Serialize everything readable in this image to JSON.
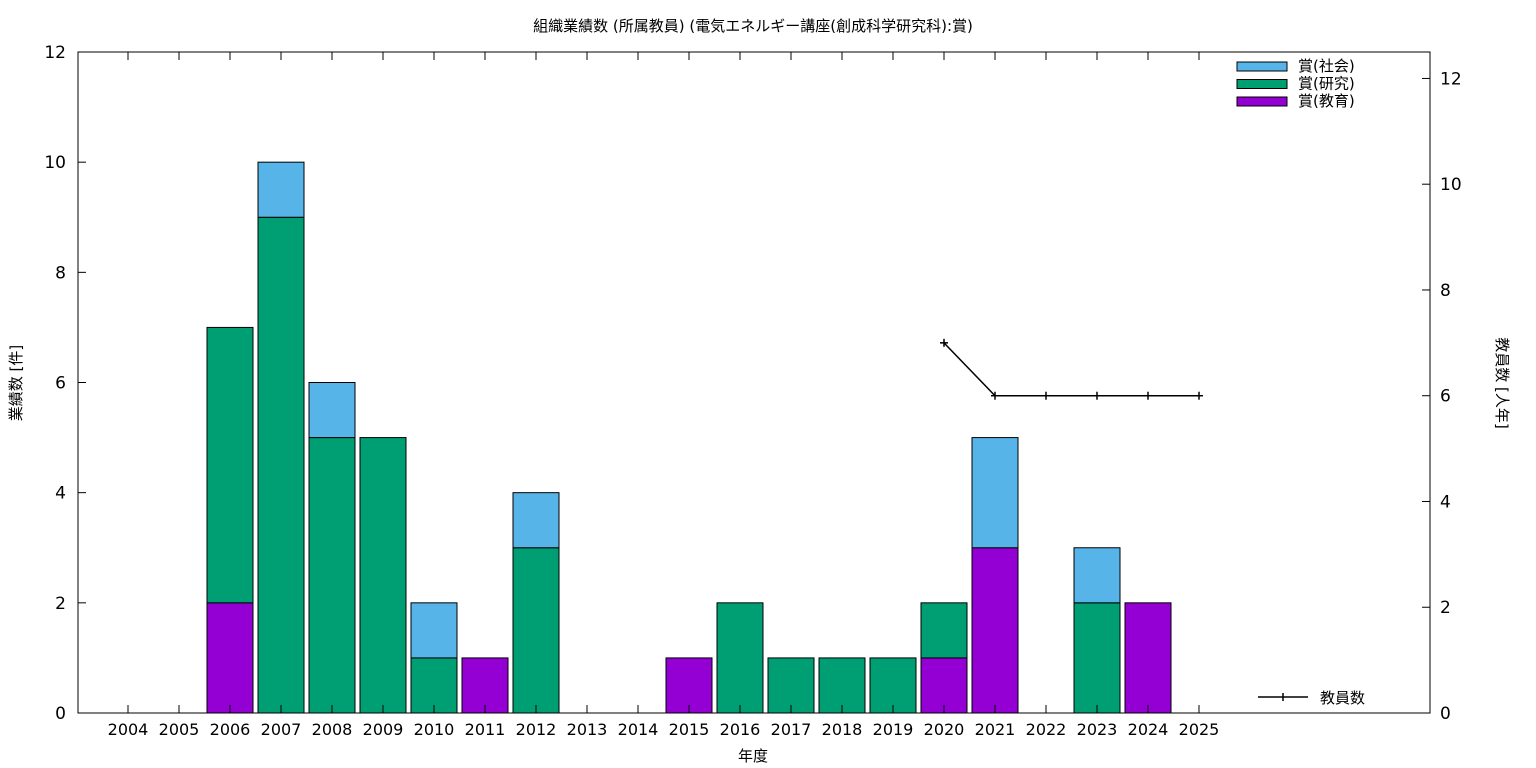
{
  "chart_data": {
    "type": "bar",
    "title": "組織業績数 (所属教員) (電気エネルギー講座(創成科学研究科):賞)",
    "xlabel": "年度",
    "ylabel": "業績数 [件]",
    "y2label": "教員数 [人年]",
    "ylim": [
      0,
      12
    ],
    "y2lim": [
      0,
      12.5
    ],
    "yticks": [
      0,
      2,
      4,
      6,
      8,
      10,
      12
    ],
    "y2ticks": [
      0,
      2,
      4,
      6,
      8,
      10,
      12
    ],
    "stacked": true,
    "grid": false,
    "legend_position": "top-right",
    "categories": [
      "2004",
      "2005",
      "2006",
      "2007",
      "2008",
      "2009",
      "2010",
      "2011",
      "2012",
      "2013",
      "2014",
      "2015",
      "2016",
      "2017",
      "2018",
      "2019",
      "2020",
      "2021",
      "2022",
      "2023",
      "2024",
      "2025"
    ],
    "series": [
      {
        "name": "賞(教育)",
        "color": "#9400d3",
        "values": [
          0,
          0,
          2,
          0,
          0,
          0,
          0,
          1,
          0,
          0,
          0,
          1,
          0,
          0,
          0,
          0,
          1,
          3,
          0,
          0,
          2,
          0
        ]
      },
      {
        "name": "賞(研究)",
        "color": "#009e73",
        "values": [
          0,
          0,
          5,
          9,
          5,
          5,
          1,
          0,
          3,
          0,
          0,
          0,
          2,
          1,
          1,
          1,
          1,
          0,
          0,
          2,
          0,
          0
        ]
      },
      {
        "name": "賞(社会)",
        "color": "#56b4e9",
        "values": [
          0,
          0,
          0,
          1,
          1,
          0,
          1,
          0,
          1,
          0,
          0,
          0,
          0,
          0,
          0,
          0,
          0,
          2,
          0,
          1,
          0,
          0
        ]
      }
    ],
    "line_series": {
      "name": "教員数",
      "axis": "y2",
      "color": "#000000",
      "x": [
        "2020",
        "2021",
        "2022",
        "2023",
        "2024",
        "2025"
      ],
      "values": [
        7,
        6,
        6,
        6,
        6,
        6
      ]
    }
  }
}
